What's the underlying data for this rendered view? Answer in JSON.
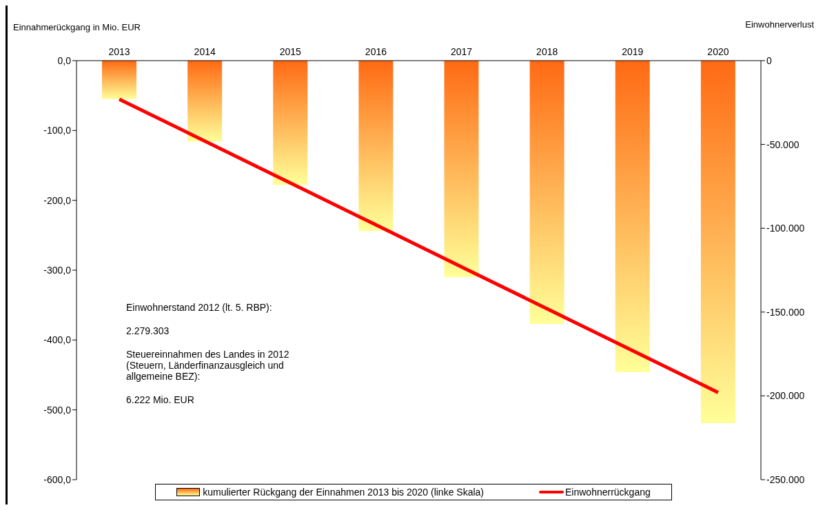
{
  "chart_data": {
    "type": "bar",
    "ylabel": "Einnahmerückgang in Mio. EUR",
    "y2label": "Einwohnerverlust",
    "categories": [
      "2013",
      "2014",
      "2015",
      "2016",
      "2017",
      "2018",
      "2019",
      "2020"
    ],
    "series": [
      {
        "name": "kumulierter Rückgang der Einnahmen 2013 bis 2020 (linke Skala)",
        "color": "#ff6a13",
        "values": [
          -55,
          -116,
          -178,
          -244,
          -310,
          -377,
          -446,
          -519
        ]
      },
      {
        "name": "Einwohnerrückgang",
        "type": "line",
        "axis": "y2",
        "color": "#ff0000",
        "values": [
          -23000,
          -48000,
          -73000,
          -98000,
          -123000,
          -148000,
          -173000,
          -198000
        ]
      }
    ],
    "ylim": [
      -600,
      0
    ],
    "yticks": [
      {
        "value": -600,
        "label": "-600,0"
      },
      {
        "value": -500,
        "label": "-500,0"
      },
      {
        "value": -400,
        "label": "-400,0"
      },
      {
        "value": -300,
        "label": "-300,0"
      },
      {
        "value": -200,
        "label": "-200,0"
      },
      {
        "value": -100,
        "label": "-100,0"
      },
      {
        "value": 0,
        "label": "0,0"
      }
    ],
    "y2lim": [
      -250000,
      0
    ],
    "y2ticks": [
      {
        "value": -250000,
        "label": "-250.000"
      },
      {
        "value": -200000,
        "label": "-200.000"
      },
      {
        "value": -150000,
        "label": "-150.000"
      },
      {
        "value": -100000,
        "label": "-100.000"
      },
      {
        "value": -50000,
        "label": "-50.000"
      },
      0
    ],
    "annotations": [
      "Einwohnerstand 2012 (lt. 5. RBP):",
      "2.279.303",
      "Steuereinnahmen des Landes in 2012 (Steuern, Länderfinanzausgleich und allgemeine BEZ):",
      "6.222 Mio. EUR"
    ],
    "legend": "bottom",
    "marker": "none"
  }
}
